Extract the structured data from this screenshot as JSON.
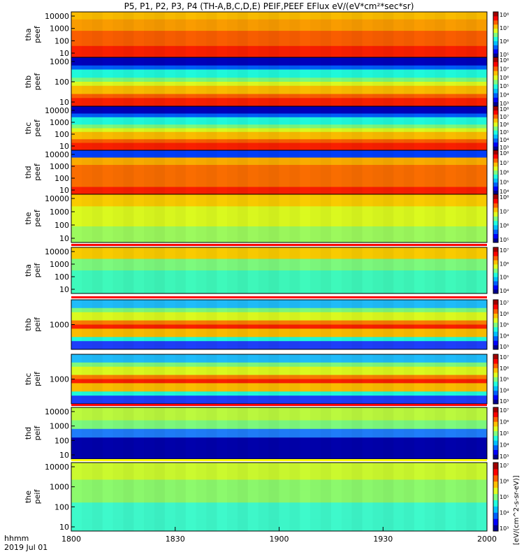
{
  "title": "P5, P1, P2, P3, P4 (TH-A,B,C,D,E) PEIF,PEEF EFlux eV/(eV*cm²*sec*sr)",
  "x_axis": {
    "ticks": [
      "1800",
      "1830",
      "1900",
      "1930",
      "2000"
    ],
    "label_line1": "hhmm",
    "label_line2": "2019 Jul 01"
  },
  "colorbar_title": "[eV/(cm^2-s-sr-eV)]",
  "chart_data": [
    {
      "type": "heatmap",
      "name": "tha peef",
      "ylabel": [
        "tha",
        "peef"
      ],
      "yticks": [
        "10",
        "100",
        "1000",
        "10000"
      ],
      "cbticks": [
        "10⁵",
        "10⁶",
        "10⁷",
        "10⁸"
      ],
      "palette": "red",
      "gap": "none"
    },
    {
      "type": "heatmap",
      "name": "thb peef",
      "ylabel": [
        "thb",
        "peef"
      ],
      "yticks": [
        "10",
        "100",
        "1000"
      ],
      "cbticks": [
        "10³",
        "10⁴",
        "10⁵",
        "10⁶",
        "10⁷",
        "10⁸"
      ],
      "palette": "bands",
      "gap": "none"
    },
    {
      "type": "heatmap",
      "name": "thc peef",
      "ylabel": [
        "thc",
        "peef"
      ],
      "yticks": [
        "10",
        "100",
        "1000",
        "10000"
      ],
      "cbticks": [
        "10³",
        "10⁴",
        "10⁵",
        "10⁶",
        "10⁷",
        "10⁸"
      ],
      "palette": "bands",
      "gap": "none"
    },
    {
      "type": "heatmap",
      "name": "thd peef",
      "ylabel": [
        "thd",
        "peef"
      ],
      "yticks": [
        "10",
        "100",
        "1000",
        "10000"
      ],
      "cbticks": [
        "10⁴",
        "10⁵",
        "10⁶",
        "10⁷",
        "10⁸"
      ],
      "palette": "orange",
      "gap": "none"
    },
    {
      "type": "heatmap",
      "name": "the peef",
      "ylabel": [
        "the",
        "peef"
      ],
      "yticks": [
        "10",
        "100",
        "1000",
        "10000"
      ],
      "cbticks": [
        "10⁵",
        "10⁶",
        "10⁷",
        "10⁸"
      ],
      "palette": "yellow",
      "gap": "none"
    },
    {
      "type": "heatmap",
      "name": "tha peif",
      "ylabel": [
        "tha",
        "peif"
      ],
      "yticks": [
        "10",
        "100",
        "1000",
        "10000"
      ],
      "cbticks": [
        "10⁴",
        "10⁵",
        "10⁶",
        "10⁷"
      ],
      "palette": "greencyan",
      "gap": "redline"
    },
    {
      "type": "heatmap",
      "name": "thb peif",
      "ylabel": [
        "thb",
        "peif"
      ],
      "yticks": [
        "1000"
      ],
      "cbticks": [
        "10³",
        "10⁴",
        "10⁵",
        "10⁶",
        "10⁷"
      ],
      "palette": "bands2",
      "gap": "redline"
    },
    {
      "type": "heatmap",
      "name": "thc peif",
      "ylabel": [
        "thc",
        "peif"
      ],
      "yticks": [
        "1000"
      ],
      "cbticks": [
        "10³",
        "10⁴",
        "10⁵",
        "10⁶",
        "10⁷"
      ],
      "palette": "bands2",
      "gap": "none"
    },
    {
      "type": "heatmap",
      "name": "thd peif",
      "ylabel": [
        "thd",
        "peif"
      ],
      "yticks": [
        "10",
        "100",
        "1000",
        "10000"
      ],
      "cbticks": [
        "10³",
        "10⁴",
        "10⁵",
        "10⁶",
        "10⁷"
      ],
      "palette": "darkbottom",
      "gap": "redline"
    },
    {
      "type": "heatmap",
      "name": "the peif",
      "ylabel": [
        "the",
        "peif"
      ],
      "yticks": [
        "10",
        "100",
        "1000",
        "10000"
      ],
      "cbticks": [
        "10³",
        "10⁴",
        "10⁵",
        "10⁶",
        "10⁷"
      ],
      "palette": "greenish",
      "gap": "yellowline"
    }
  ]
}
